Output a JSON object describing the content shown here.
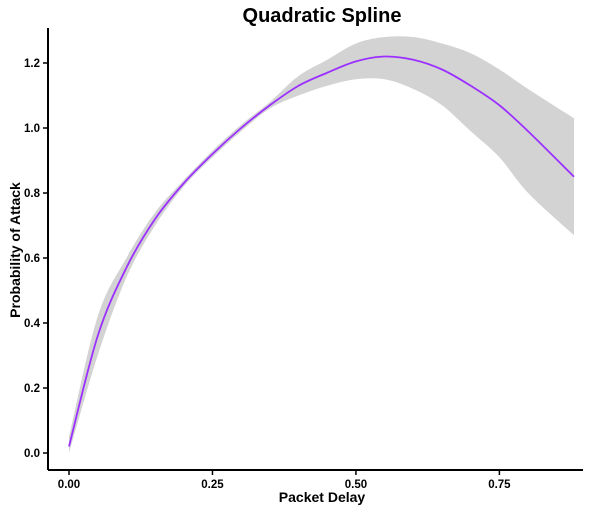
{
  "chart_data": {
    "type": "line",
    "title": "Quadratic Spline",
    "xlabel": "Packet Delay",
    "ylabel": "Probability of Attack",
    "xlim": [
      0.0,
      0.88
    ],
    "ylim": [
      -0.02,
      1.3
    ],
    "x_ticks": [
      0.0,
      0.25,
      0.5,
      0.75
    ],
    "x_tick_labels": [
      "0.00",
      "0.25",
      "0.50",
      "0.75"
    ],
    "y_ticks": [
      0.0,
      0.2,
      0.4,
      0.6,
      0.8,
      1.0,
      1.2
    ],
    "y_tick_labels": [
      "0.0",
      "0.2",
      "0.4",
      "0.6",
      "0.8",
      "1.0",
      "1.2"
    ],
    "grid": false,
    "legend": "none",
    "line_color": "#9B30FF",
    "band_color": "#D3D3D3",
    "series": [
      {
        "x": [
          0.0,
          0.05,
          0.1,
          0.15,
          0.2,
          0.25,
          0.3,
          0.35,
          0.4,
          0.45,
          0.5,
          0.55,
          0.6,
          0.65,
          0.7,
          0.75,
          0.8,
          0.88
        ],
        "y": [
          0.02,
          0.36,
          0.57,
          0.72,
          0.83,
          0.92,
          1.0,
          1.07,
          1.13,
          1.17,
          1.205,
          1.22,
          1.21,
          1.18,
          1.13,
          1.07,
          0.99,
          0.85
        ],
        "lower": [
          0.0,
          0.3,
          0.54,
          0.7,
          0.82,
          0.91,
          0.99,
          1.06,
          1.1,
          1.13,
          1.15,
          1.15,
          1.12,
          1.07,
          0.99,
          0.91,
          0.8,
          0.67
        ],
        "upper": [
          0.05,
          0.42,
          0.6,
          0.74,
          0.84,
          0.93,
          1.01,
          1.08,
          1.16,
          1.21,
          1.26,
          1.28,
          1.28,
          1.26,
          1.23,
          1.18,
          1.12,
          1.03
        ]
      }
    ]
  }
}
